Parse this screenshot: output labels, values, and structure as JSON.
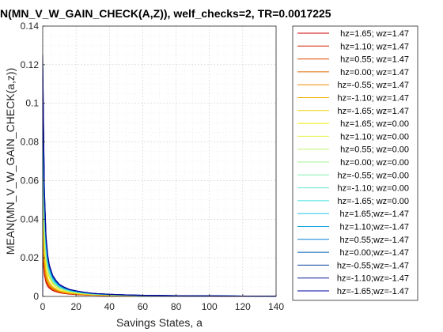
{
  "chart_data": {
    "type": "line",
    "title": "N(MN_V_W_GAIN_CHECK(A,Z)), welf_checks=2, TR=0.0017225",
    "xlabel": "Savings States, a",
    "ylabel": "MEAN(MN_V_W_GAIN_CHECK(a,z))",
    "xlim": [
      0,
      140
    ],
    "ylim": [
      0,
      0.14
    ],
    "xticks": [
      0,
      20,
      40,
      60,
      80,
      100,
      120,
      140
    ],
    "yticks": [
      0,
      0.02,
      0.04,
      0.06,
      0.08,
      0.1,
      0.12,
      0.14
    ],
    "xtick_labels": [
      "0",
      "20",
      "40",
      "60",
      "80",
      "100",
      "120",
      "140"
    ],
    "ytick_labels": [
      "0",
      "0.02",
      "0.04",
      "0.06",
      "0.08",
      "0.1",
      "0.12",
      "0.14"
    ],
    "grid": true,
    "legend_position": "outside-right",
    "x": [
      0,
      1,
      2,
      3,
      4,
      6,
      8,
      10,
      13,
      16,
      20,
      25,
      30,
      40,
      50,
      60,
      80,
      100,
      120,
      140
    ],
    "series": [
      {
        "name": "hz=1.65; wz=1.47",
        "color": "#cc0000",
        "values": [
          0.02,
          0.011,
          0.007,
          0.0052,
          0.0042,
          0.003,
          0.0024,
          0.0019,
          0.0015,
          0.0012,
          0.0009,
          0.0007,
          0.0006,
          0.0004,
          0.0003,
          0.0003,
          0.0002,
          0.0002,
          0.0001,
          0.0001
        ]
      },
      {
        "name": "hz=1.10; wz=1.47",
        "color": "#d62000",
        "values": [
          0.022,
          0.012,
          0.0076,
          0.0056,
          0.0045,
          0.0032,
          0.0026,
          0.002,
          0.0016,
          0.0013,
          0.001,
          0.0008,
          0.0006,
          0.0004,
          0.0003,
          0.0003,
          0.0002,
          0.0002,
          0.0001,
          0.0001
        ]
      },
      {
        "name": "hz=0.55; wz=1.47",
        "color": "#de4400",
        "values": [
          0.025,
          0.0135,
          0.0084,
          0.0062,
          0.0049,
          0.0035,
          0.0028,
          0.0022,
          0.0017,
          0.0014,
          0.0011,
          0.0008,
          0.0007,
          0.0005,
          0.0004,
          0.0003,
          0.0002,
          0.0002,
          0.0001,
          0.0001
        ]
      },
      {
        "name": "hz=0.00; wz=1.47",
        "color": "#e46a00",
        "values": [
          0.028,
          0.015,
          0.0092,
          0.0068,
          0.0054,
          0.0038,
          0.003,
          0.0024,
          0.0019,
          0.0015,
          0.0012,
          0.0009,
          0.0007,
          0.0005,
          0.0004,
          0.0003,
          0.0002,
          0.0002,
          0.0001,
          0.0001
        ]
      },
      {
        "name": "hz=-0.55; wz=1.47",
        "color": "#ea8c00",
        "values": [
          0.032,
          0.017,
          0.0104,
          0.0075,
          0.0059,
          0.0042,
          0.0033,
          0.0026,
          0.002,
          0.0016,
          0.0013,
          0.001,
          0.0008,
          0.0005,
          0.0004,
          0.0003,
          0.0002,
          0.0002,
          0.0001,
          0.0001
        ]
      },
      {
        "name": "hz=-1.10; wz=1.47",
        "color": "#eeb000",
        "values": [
          0.038,
          0.0195,
          0.0118,
          0.0084,
          0.0066,
          0.0046,
          0.0036,
          0.0028,
          0.0022,
          0.0018,
          0.0014,
          0.0011,
          0.0008,
          0.0006,
          0.0004,
          0.0003,
          0.0002,
          0.0002,
          0.0001,
          0.0001
        ]
      },
      {
        "name": "hz=-1.65; wz=1.47",
        "color": "#f0d000",
        "values": [
          0.045,
          0.0225,
          0.0135,
          0.0095,
          0.0074,
          0.0051,
          0.004,
          0.0031,
          0.0024,
          0.0019,
          0.0015,
          0.0011,
          0.0009,
          0.0006,
          0.0005,
          0.0004,
          0.0003,
          0.0002,
          0.0001,
          0.0001
        ]
      },
      {
        "name": "hz=1.65; wz=0.00",
        "color": "#f2ec00",
        "values": [
          0.06,
          0.03,
          0.0175,
          0.0122,
          0.0094,
          0.0064,
          0.0049,
          0.0038,
          0.0029,
          0.0023,
          0.0018,
          0.0014,
          0.0011,
          0.0007,
          0.0005,
          0.0004,
          0.0003,
          0.0002,
          0.0002,
          0.0001
        ]
      },
      {
        "name": "hz=1.10; wz=0.00",
        "color": "#e2f040",
        "values": [
          0.065,
          0.032,
          0.0185,
          0.013,
          0.01,
          0.0068,
          0.0052,
          0.004,
          0.0031,
          0.0024,
          0.0019,
          0.0014,
          0.0011,
          0.0008,
          0.0006,
          0.0004,
          0.0003,
          0.0002,
          0.0002,
          0.0001
        ]
      },
      {
        "name": "hz=0.55; wz=0.00",
        "color": "#c4f070",
        "values": [
          0.07,
          0.034,
          0.0196,
          0.0137,
          0.0105,
          0.0072,
          0.0055,
          0.0042,
          0.0032,
          0.0025,
          0.002,
          0.0015,
          0.0012,
          0.0008,
          0.0006,
          0.0004,
          0.0003,
          0.0002,
          0.0002,
          0.0001
        ]
      },
      {
        "name": "hz=0.00; wz=0.00",
        "color": "#a4f090",
        "values": [
          0.076,
          0.0365,
          0.0208,
          0.0145,
          0.0111,
          0.0076,
          0.0058,
          0.0044,
          0.0034,
          0.0027,
          0.0021,
          0.0016,
          0.0012,
          0.0008,
          0.0006,
          0.0004,
          0.0003,
          0.0002,
          0.0002,
          0.0001
        ]
      },
      {
        "name": "hz=-0.55; wz=0.00",
        "color": "#80eeb0",
        "values": [
          0.082,
          0.039,
          0.0222,
          0.0154,
          0.0118,
          0.008,
          0.0061,
          0.0047,
          0.0036,
          0.0028,
          0.0022,
          0.0017,
          0.0013,
          0.0009,
          0.0006,
          0.0005,
          0.0003,
          0.0002,
          0.0002,
          0.0001
        ]
      },
      {
        "name": "hz=-1.10; wz=0.00",
        "color": "#5ce8c8",
        "values": [
          0.088,
          0.0415,
          0.0235,
          0.0163,
          0.0124,
          0.0084,
          0.0064,
          0.0049,
          0.0037,
          0.0029,
          0.0023,
          0.0017,
          0.0013,
          0.0009,
          0.0007,
          0.0005,
          0.0003,
          0.0002,
          0.0002,
          0.0001
        ]
      },
      {
        "name": "hz=-1.65; wz=0.00",
        "color": "#3ce0dc",
        "values": [
          0.094,
          0.044,
          0.0248,
          0.0172,
          0.0131,
          0.0089,
          0.0067,
          0.0052,
          0.0039,
          0.0031,
          0.0024,
          0.0018,
          0.0014,
          0.0009,
          0.0007,
          0.0005,
          0.0003,
          0.0002,
          0.0002,
          0.0001
        ]
      },
      {
        "name": "hz=1.65;wz=-1.47",
        "color": "#20c8e8",
        "values": [
          0.1,
          0.0465,
          0.0262,
          0.0181,
          0.0138,
          0.0093,
          0.007,
          0.0054,
          0.0041,
          0.0032,
          0.0025,
          0.0019,
          0.0014,
          0.001,
          0.0007,
          0.0005,
          0.0003,
          0.0003,
          0.0002,
          0.0001
        ]
      },
      {
        "name": "hz=1.10;wz=-1.47",
        "color": "#10a4e0",
        "values": [
          0.105,
          0.0485,
          0.0272,
          0.0188,
          0.0143,
          0.0096,
          0.0073,
          0.0056,
          0.0042,
          0.0033,
          0.0026,
          0.0019,
          0.0015,
          0.001,
          0.0007,
          0.0005,
          0.0004,
          0.0003,
          0.0002,
          0.0001
        ]
      },
      {
        "name": "hz=0.55;wz=-1.47",
        "color": "#0880d0",
        "values": [
          0.11,
          0.0505,
          0.0283,
          0.0195,
          0.0148,
          0.01,
          0.0075,
          0.0058,
          0.0044,
          0.0034,
          0.0027,
          0.002,
          0.0015,
          0.001,
          0.0007,
          0.0005,
          0.0004,
          0.0003,
          0.0002,
          0.0001
        ]
      },
      {
        "name": "hz=0.00;wz=-1.47",
        "color": "#0460b8",
        "values": [
          0.115,
          0.0525,
          0.0293,
          0.0202,
          0.0153,
          0.0103,
          0.0078,
          0.006,
          0.0045,
          0.0035,
          0.0028,
          0.0021,
          0.0016,
          0.0011,
          0.0008,
          0.0005,
          0.0004,
          0.0003,
          0.0002,
          0.0001
        ]
      },
      {
        "name": "hz=-0.55;wz=-1.47",
        "color": "#0240a0",
        "values": [
          0.119,
          0.054,
          0.0301,
          0.0207,
          0.0157,
          0.0106,
          0.008,
          0.0061,
          0.0046,
          0.0036,
          0.0028,
          0.0021,
          0.0016,
          0.0011,
          0.0008,
          0.0006,
          0.0004,
          0.0003,
          0.0002,
          0.0001
        ]
      },
      {
        "name": "hz=-1.10;wz=-1.47",
        "color": "#021c98",
        "values": [
          0.122,
          0.0552,
          0.0307,
          0.0211,
          0.016,
          0.0108,
          0.0081,
          0.0062,
          0.0047,
          0.0036,
          0.0029,
          0.0021,
          0.0016,
          0.0011,
          0.0008,
          0.0006,
          0.0004,
          0.0003,
          0.0002,
          0.0001
        ]
      },
      {
        "name": "hz=-1.65;wz=-1.47",
        "color": "#0000a0",
        "values": [
          0.125,
          0.0565,
          0.0314,
          0.0216,
          0.0163,
          0.011,
          0.0083,
          0.0063,
          0.0048,
          0.0037,
          0.0029,
          0.0022,
          0.0016,
          0.0011,
          0.0008,
          0.0006,
          0.0004,
          0.0003,
          0.0002,
          0.0001
        ]
      }
    ]
  }
}
